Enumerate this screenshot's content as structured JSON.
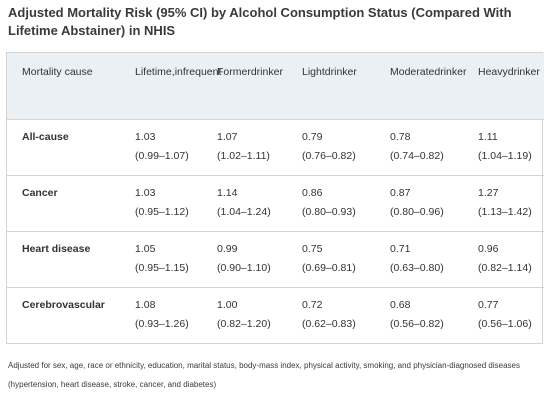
{
  "title": "Adjusted Mortality Risk (95% CI) by Alcohol Consumption Status (Compared With Lifetime Abstainer) in NHIS",
  "table": {
    "headers": [
      {
        "line1": "Mortality cause",
        "line2": ""
      },
      {
        "line1": "Lifetime,",
        "line2": "infrequent"
      },
      {
        "line1": "Former",
        "line2": "drinker"
      },
      {
        "line1": "Light",
        "line2": "drinker"
      },
      {
        "line1": "Moderate",
        "line2": "drinker"
      },
      {
        "line1": "Heavy",
        "line2": "drinker"
      }
    ],
    "rows": [
      {
        "cause": "All-cause",
        "cells": [
          {
            "value": "1.03",
            "ci": "(0.99–1.07)"
          },
          {
            "value": "1.07",
            "ci": "(1.02–1.11)"
          },
          {
            "value": "0.79",
            "ci": "(0.76–0.82)"
          },
          {
            "value": "0.78",
            "ci": "(0.74–0.82)"
          },
          {
            "value": "1.11",
            "ci": "(1.04–1.19)"
          }
        ]
      },
      {
        "cause": "Cancer",
        "cells": [
          {
            "value": "1.03",
            "ci": "(0.95–1.12)"
          },
          {
            "value": "1.14",
            "ci": "(1.04–1.24)"
          },
          {
            "value": "0.86",
            "ci": "(0.80–0.93)"
          },
          {
            "value": "0.87",
            "ci": "(0.80–0.96)"
          },
          {
            "value": "1.27",
            "ci": "(1.13–1.42)"
          }
        ]
      },
      {
        "cause": "Heart disease",
        "cells": [
          {
            "value": "1.05",
            "ci": "(0.95–1.15)"
          },
          {
            "value": "0.99",
            "ci": "(0.90–1.10)"
          },
          {
            "value": "0.75",
            "ci": "(0.69–0.81)"
          },
          {
            "value": "0.71",
            "ci": "(0.63–0.80)"
          },
          {
            "value": "0.96",
            "ci": "(0.82–1.14)"
          }
        ]
      },
      {
        "cause": "Cerebrovascular",
        "cells": [
          {
            "value": "1.08",
            "ci": "(0.93–1.26)"
          },
          {
            "value": "1.00",
            "ci": "(0.82–1.20)"
          },
          {
            "value": "0.72",
            "ci": "(0.62–0.83)"
          },
          {
            "value": "0.68",
            "ci": "(0.56–0.82)"
          },
          {
            "value": "0.77",
            "ci": "(0.56–1.06)"
          }
        ]
      }
    ]
  },
  "footnote": "Adjusted for sex, age, race or ethnicity, education, marital status, body-mass index, physical activity, smoking, and physician-diagnosed diseases (hypertension, heart disease, stroke, cancer, and diabetes)",
  "colors": {
    "header_bg": "#eaf0f4",
    "border": "#d3d3d3",
    "text": "#333333"
  }
}
